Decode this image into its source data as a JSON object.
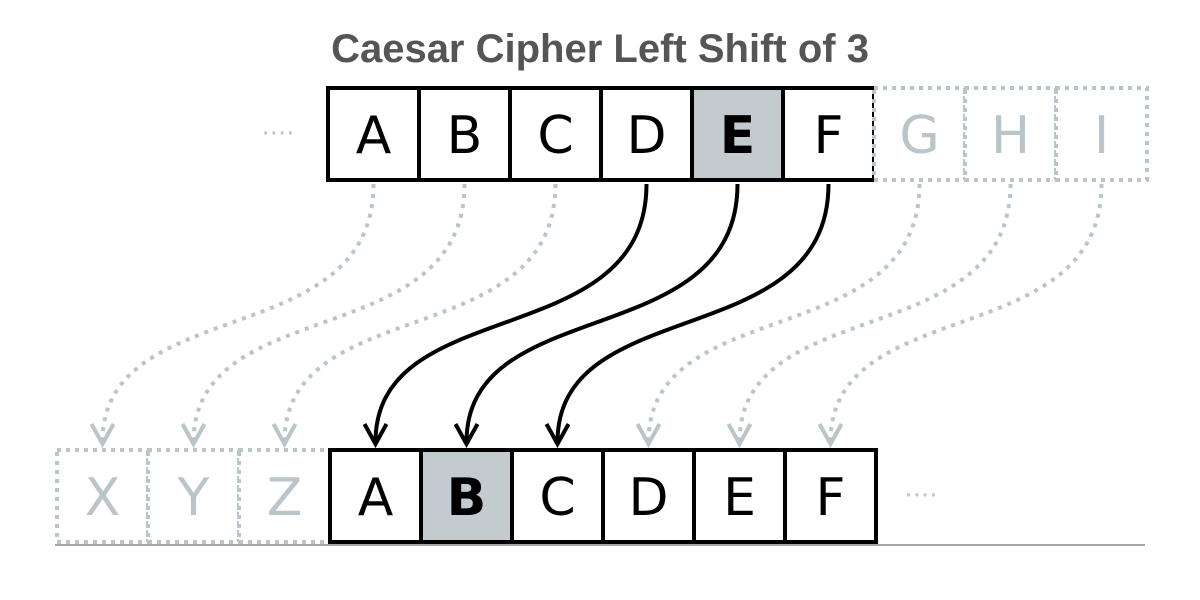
{
  "title": "Caesar Cipher Left Shift of 3",
  "top_row": {
    "letters": [
      "A",
      "B",
      "C",
      "D",
      "E",
      "F",
      "G",
      "H",
      "I"
    ],
    "active_count": 6,
    "highlight_index": 4,
    "leading_ellipsis": "····"
  },
  "bottom_row": {
    "letters": [
      "X",
      "Y",
      "Z",
      "A",
      "B",
      "C",
      "D",
      "E",
      "F"
    ],
    "faded_count": 3,
    "highlight_index": 4,
    "trailing_ellipsis": "····"
  },
  "colors": {
    "highlight": "#c3cbcf",
    "faded": "#b9c5c9",
    "active": "#000000",
    "title": "#555555"
  }
}
